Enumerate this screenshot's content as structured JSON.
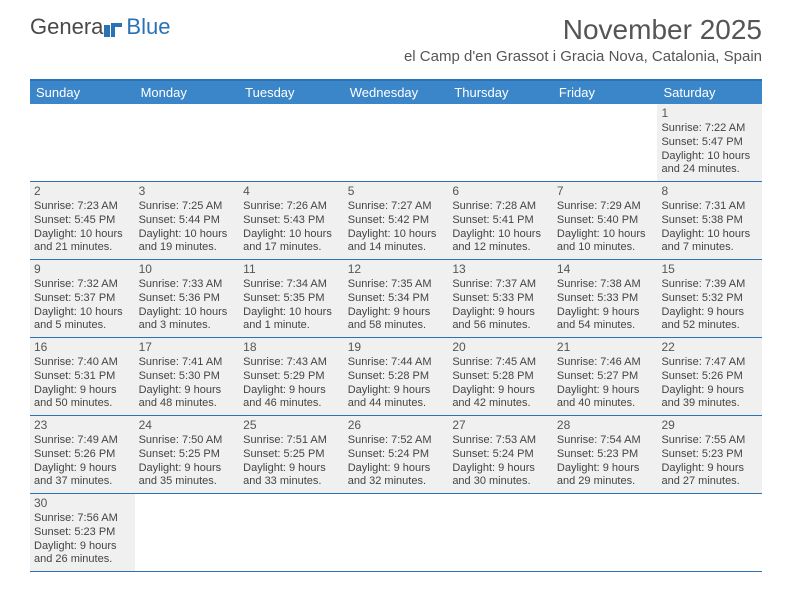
{
  "logo": {
    "text1": "Genera",
    "text2": "Blue"
  },
  "title": "November 2025",
  "location": "el Camp d'en Grassot i Gracia Nova, Catalonia, Spain",
  "weekdays": [
    "Sunday",
    "Monday",
    "Tuesday",
    "Wednesday",
    "Thursday",
    "Friday",
    "Saturday"
  ],
  "colors": {
    "header_bar": "#3b86c8",
    "header_text": "#ffffff",
    "border": "#2a72b5",
    "cell_bg": "#f0f0f0",
    "text": "#444444"
  },
  "weeks": [
    [
      {
        "empty": true
      },
      {
        "empty": true
      },
      {
        "empty": true
      },
      {
        "empty": true
      },
      {
        "empty": true
      },
      {
        "empty": true
      },
      {
        "day": "1",
        "sunrise": "Sunrise: 7:22 AM",
        "sunset": "Sunset: 5:47 PM",
        "daylight1": "Daylight: 10 hours",
        "daylight2": "and 24 minutes."
      }
    ],
    [
      {
        "day": "2",
        "sunrise": "Sunrise: 7:23 AM",
        "sunset": "Sunset: 5:45 PM",
        "daylight1": "Daylight: 10 hours",
        "daylight2": "and 21 minutes."
      },
      {
        "day": "3",
        "sunrise": "Sunrise: 7:25 AM",
        "sunset": "Sunset: 5:44 PM",
        "daylight1": "Daylight: 10 hours",
        "daylight2": "and 19 minutes."
      },
      {
        "day": "4",
        "sunrise": "Sunrise: 7:26 AM",
        "sunset": "Sunset: 5:43 PM",
        "daylight1": "Daylight: 10 hours",
        "daylight2": "and 17 minutes."
      },
      {
        "day": "5",
        "sunrise": "Sunrise: 7:27 AM",
        "sunset": "Sunset: 5:42 PM",
        "daylight1": "Daylight: 10 hours",
        "daylight2": "and 14 minutes."
      },
      {
        "day": "6",
        "sunrise": "Sunrise: 7:28 AM",
        "sunset": "Sunset: 5:41 PM",
        "daylight1": "Daylight: 10 hours",
        "daylight2": "and 12 minutes."
      },
      {
        "day": "7",
        "sunrise": "Sunrise: 7:29 AM",
        "sunset": "Sunset: 5:40 PM",
        "daylight1": "Daylight: 10 hours",
        "daylight2": "and 10 minutes."
      },
      {
        "day": "8",
        "sunrise": "Sunrise: 7:31 AM",
        "sunset": "Sunset: 5:38 PM",
        "daylight1": "Daylight: 10 hours",
        "daylight2": "and 7 minutes."
      }
    ],
    [
      {
        "day": "9",
        "sunrise": "Sunrise: 7:32 AM",
        "sunset": "Sunset: 5:37 PM",
        "daylight1": "Daylight: 10 hours",
        "daylight2": "and 5 minutes."
      },
      {
        "day": "10",
        "sunrise": "Sunrise: 7:33 AM",
        "sunset": "Sunset: 5:36 PM",
        "daylight1": "Daylight: 10 hours",
        "daylight2": "and 3 minutes."
      },
      {
        "day": "11",
        "sunrise": "Sunrise: 7:34 AM",
        "sunset": "Sunset: 5:35 PM",
        "daylight1": "Daylight: 10 hours",
        "daylight2": "and 1 minute."
      },
      {
        "day": "12",
        "sunrise": "Sunrise: 7:35 AM",
        "sunset": "Sunset: 5:34 PM",
        "daylight1": "Daylight: 9 hours",
        "daylight2": "and 58 minutes."
      },
      {
        "day": "13",
        "sunrise": "Sunrise: 7:37 AM",
        "sunset": "Sunset: 5:33 PM",
        "daylight1": "Daylight: 9 hours",
        "daylight2": "and 56 minutes."
      },
      {
        "day": "14",
        "sunrise": "Sunrise: 7:38 AM",
        "sunset": "Sunset: 5:33 PM",
        "daylight1": "Daylight: 9 hours",
        "daylight2": "and 54 minutes."
      },
      {
        "day": "15",
        "sunrise": "Sunrise: 7:39 AM",
        "sunset": "Sunset: 5:32 PM",
        "daylight1": "Daylight: 9 hours",
        "daylight2": "and 52 minutes."
      }
    ],
    [
      {
        "day": "16",
        "sunrise": "Sunrise: 7:40 AM",
        "sunset": "Sunset: 5:31 PM",
        "daylight1": "Daylight: 9 hours",
        "daylight2": "and 50 minutes."
      },
      {
        "day": "17",
        "sunrise": "Sunrise: 7:41 AM",
        "sunset": "Sunset: 5:30 PM",
        "daylight1": "Daylight: 9 hours",
        "daylight2": "and 48 minutes."
      },
      {
        "day": "18",
        "sunrise": "Sunrise: 7:43 AM",
        "sunset": "Sunset: 5:29 PM",
        "daylight1": "Daylight: 9 hours",
        "daylight2": "and 46 minutes."
      },
      {
        "day": "19",
        "sunrise": "Sunrise: 7:44 AM",
        "sunset": "Sunset: 5:28 PM",
        "daylight1": "Daylight: 9 hours",
        "daylight2": "and 44 minutes."
      },
      {
        "day": "20",
        "sunrise": "Sunrise: 7:45 AM",
        "sunset": "Sunset: 5:28 PM",
        "daylight1": "Daylight: 9 hours",
        "daylight2": "and 42 minutes."
      },
      {
        "day": "21",
        "sunrise": "Sunrise: 7:46 AM",
        "sunset": "Sunset: 5:27 PM",
        "daylight1": "Daylight: 9 hours",
        "daylight2": "and 40 minutes."
      },
      {
        "day": "22",
        "sunrise": "Sunrise: 7:47 AM",
        "sunset": "Sunset: 5:26 PM",
        "daylight1": "Daylight: 9 hours",
        "daylight2": "and 39 minutes."
      }
    ],
    [
      {
        "day": "23",
        "sunrise": "Sunrise: 7:49 AM",
        "sunset": "Sunset: 5:26 PM",
        "daylight1": "Daylight: 9 hours",
        "daylight2": "and 37 minutes."
      },
      {
        "day": "24",
        "sunrise": "Sunrise: 7:50 AM",
        "sunset": "Sunset: 5:25 PM",
        "daylight1": "Daylight: 9 hours",
        "daylight2": "and 35 minutes."
      },
      {
        "day": "25",
        "sunrise": "Sunrise: 7:51 AM",
        "sunset": "Sunset: 5:25 PM",
        "daylight1": "Daylight: 9 hours",
        "daylight2": "and 33 minutes."
      },
      {
        "day": "26",
        "sunrise": "Sunrise: 7:52 AM",
        "sunset": "Sunset: 5:24 PM",
        "daylight1": "Daylight: 9 hours",
        "daylight2": "and 32 minutes."
      },
      {
        "day": "27",
        "sunrise": "Sunrise: 7:53 AM",
        "sunset": "Sunset: 5:24 PM",
        "daylight1": "Daylight: 9 hours",
        "daylight2": "and 30 minutes."
      },
      {
        "day": "28",
        "sunrise": "Sunrise: 7:54 AM",
        "sunset": "Sunset: 5:23 PM",
        "daylight1": "Daylight: 9 hours",
        "daylight2": "and 29 minutes."
      },
      {
        "day": "29",
        "sunrise": "Sunrise: 7:55 AM",
        "sunset": "Sunset: 5:23 PM",
        "daylight1": "Daylight: 9 hours",
        "daylight2": "and 27 minutes."
      }
    ],
    [
      {
        "day": "30",
        "sunrise": "Sunrise: 7:56 AM",
        "sunset": "Sunset: 5:23 PM",
        "daylight1": "Daylight: 9 hours",
        "daylight2": "and 26 minutes."
      },
      {
        "empty": true
      },
      {
        "empty": true
      },
      {
        "empty": true
      },
      {
        "empty": true
      },
      {
        "empty": true
      },
      {
        "empty": true
      }
    ]
  ]
}
